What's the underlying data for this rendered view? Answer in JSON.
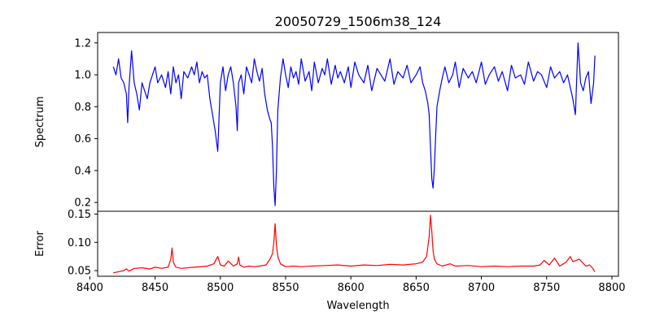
{
  "chart_data": [
    {
      "type": "line",
      "title": "20050729_1506m38_124",
      "xlabel": "",
      "ylabel": "Spectrum",
      "xlim": [
        8406,
        8805
      ],
      "ylim": [
        0.145,
        1.265
      ],
      "yticks": [
        0.2,
        0.4,
        0.6,
        0.8,
        1.0,
        1.2
      ],
      "ytick_labels": [
        "0.2",
        "0.4",
        "0.6",
        "0.8",
        "1.0",
        "1.2"
      ],
      "x_ticklabels_visible": false,
      "series": [
        {
          "color": "#0000ff",
          "x": [
            8418,
            8420,
            8422,
            8424,
            8426,
            8428,
            8429,
            8430,
            8432,
            8434,
            8436,
            8438,
            8440,
            8442,
            8444,
            8446,
            8448,
            8450,
            8452,
            8455,
            8458,
            8460,
            8462,
            8464,
            8466,
            8468,
            8470,
            8472,
            8475,
            8478,
            8480,
            8482,
            8484,
            8486,
            8488,
            8490,
            8492,
            8494,
            8496,
            8498,
            8500,
            8502,
            8504,
            8506,
            8508,
            8510,
            8512,
            8513,
            8514,
            8516,
            8518,
            8520,
            8522,
            8524,
            8526,
            8528,
            8530,
            8532,
            8534,
            8536,
            8538,
            8539,
            8540,
            8541,
            8542,
            8543,
            8544,
            8546,
            8548,
            8550,
            8552,
            8554,
            8556,
            8558,
            8560,
            8562,
            8565,
            8568,
            8570,
            8572,
            8575,
            8578,
            8580,
            8582,
            8585,
            8588,
            8590,
            8592,
            8595,
            8598,
            8600,
            8603,
            8606,
            8610,
            8613,
            8616,
            8620,
            8623,
            8626,
            8630,
            8633,
            8636,
            8640,
            8643,
            8646,
            8650,
            8653,
            8655,
            8657,
            8659,
            8660,
            8661,
            8662,
            8663,
            8664,
            8665,
            8666,
            8668,
            8670,
            8672,
            8675,
            8678,
            8680,
            8683,
            8686,
            8690,
            8693,
            8696,
            8700,
            8703,
            8706,
            8710,
            8713,
            8716,
            8720,
            8723,
            8726,
            8730,
            8733,
            8736,
            8740,
            8743,
            8746,
            8750,
            8753,
            8756,
            8760,
            8763,
            8766,
            8770,
            8772,
            8774,
            8776,
            8778,
            8780,
            8782,
            8784,
            8786,
            8787
          ],
          "y": [
            1.05,
            1.0,
            1.1,
            0.98,
            0.95,
            0.88,
            0.7,
            0.92,
            1.15,
            0.95,
            0.88,
            0.78,
            0.95,
            0.9,
            0.85,
            0.95,
            1.0,
            1.05,
            0.95,
            1.0,
            0.92,
            1.02,
            0.88,
            1.05,
            0.95,
            1.0,
            0.85,
            1.02,
            0.98,
            1.05,
            1.0,
            1.08,
            0.95,
            1.02,
            0.98,
            1.0,
            0.85,
            0.75,
            0.65,
            0.52,
            0.95,
            1.05,
            0.9,
            1.0,
            1.05,
            0.95,
            0.8,
            0.65,
            0.95,
            1.0,
            0.88,
            1.05,
            1.0,
            0.95,
            1.1,
            1.02,
            0.96,
            1.04,
            0.88,
            0.78,
            0.72,
            0.7,
            0.55,
            0.3,
            0.18,
            0.4,
            0.78,
            0.98,
            1.1,
            1.0,
            0.92,
            1.05,
            0.98,
            1.02,
            0.94,
            1.1,
            0.96,
            1.02,
            0.9,
            1.08,
            0.95,
            1.04,
            1.0,
            1.1,
            0.94,
            1.06,
            0.98,
            1.02,
            0.95,
            1.05,
            0.92,
            1.08,
            1.0,
            0.95,
            1.06,
            0.9,
            1.04,
            1.0,
            0.96,
            1.1,
            0.94,
            1.02,
            0.98,
            1.06,
            0.95,
            1.0,
            1.05,
            0.95,
            0.9,
            0.82,
            0.75,
            0.55,
            0.35,
            0.29,
            0.42,
            0.62,
            0.8,
            0.9,
            0.98,
            1.05,
            0.95,
            1.0,
            1.08,
            0.92,
            1.04,
            0.98,
            1.02,
            0.95,
            1.08,
            0.94,
            1.0,
            1.05,
            0.96,
            1.02,
            0.9,
            1.06,
            0.98,
            1.0,
            0.94,
            1.08,
            0.96,
            1.02,
            1.0,
            0.92,
            1.05,
            0.98,
            1.02,
            0.95,
            1.0,
            0.85,
            0.75,
            1.2,
            0.95,
            0.9,
            0.98,
            1.02,
            0.82,
            0.95,
            1.12
          ]
        }
      ]
    },
    {
      "type": "line",
      "title": "",
      "xlabel": "Wavelength",
      "ylabel": "Error",
      "xlim": [
        8406,
        8805
      ],
      "ylim": [
        0.04,
        0.155
      ],
      "xticks": [
        8400,
        8450,
        8500,
        8550,
        8600,
        8650,
        8700,
        8750,
        8800
      ],
      "xtick_labels": [
        "8400",
        "8450",
        "8500",
        "8550",
        "8600",
        "8650",
        "8700",
        "8750",
        "8800"
      ],
      "yticks": [
        0.05,
        0.1,
        0.15
      ],
      "ytick_labels": [
        "0.05",
        "0.10",
        "0.15"
      ],
      "series": [
        {
          "color": "#ff0000",
          "x": [
            8418,
            8422,
            8426,
            8428,
            8430,
            8434,
            8440,
            8446,
            8450,
            8455,
            8460,
            8462,
            8463,
            8464,
            8466,
            8470,
            8480,
            8490,
            8495,
            8498,
            8500,
            8503,
            8506,
            8510,
            8513,
            8514,
            8515,
            8518,
            8522,
            8526,
            8530,
            8535,
            8538,
            8540,
            8541,
            8542,
            8543,
            8544,
            8546,
            8550,
            8556,
            8562,
            8570,
            8580,
            8590,
            8600,
            8610,
            8620,
            8630,
            8640,
            8650,
            8655,
            8658,
            8660,
            8661,
            8662,
            8663,
            8664,
            8666,
            8670,
            8676,
            8680,
            8690,
            8700,
            8710,
            8720,
            8730,
            8740,
            8745,
            8748,
            8752,
            8756,
            8760,
            8765,
            8768,
            8770,
            8775,
            8780,
            8783,
            8785,
            8787
          ],
          "y": [
            0.046,
            0.048,
            0.05,
            0.053,
            0.049,
            0.054,
            0.055,
            0.053,
            0.056,
            0.054,
            0.056,
            0.07,
            0.09,
            0.065,
            0.056,
            0.054,
            0.056,
            0.058,
            0.062,
            0.075,
            0.06,
            0.058,
            0.067,
            0.058,
            0.062,
            0.074,
            0.06,
            0.056,
            0.058,
            0.057,
            0.058,
            0.06,
            0.07,
            0.08,
            0.1,
            0.133,
            0.095,
            0.075,
            0.062,
            0.057,
            0.058,
            0.057,
            0.058,
            0.059,
            0.06,
            0.058,
            0.06,
            0.059,
            0.061,
            0.06,
            0.062,
            0.065,
            0.075,
            0.11,
            0.148,
            0.12,
            0.085,
            0.07,
            0.062,
            0.058,
            0.062,
            0.058,
            0.059,
            0.057,
            0.058,
            0.057,
            0.058,
            0.058,
            0.06,
            0.068,
            0.06,
            0.072,
            0.058,
            0.065,
            0.075,
            0.066,
            0.07,
            0.058,
            0.06,
            0.055,
            0.048
          ]
        }
      ]
    }
  ]
}
